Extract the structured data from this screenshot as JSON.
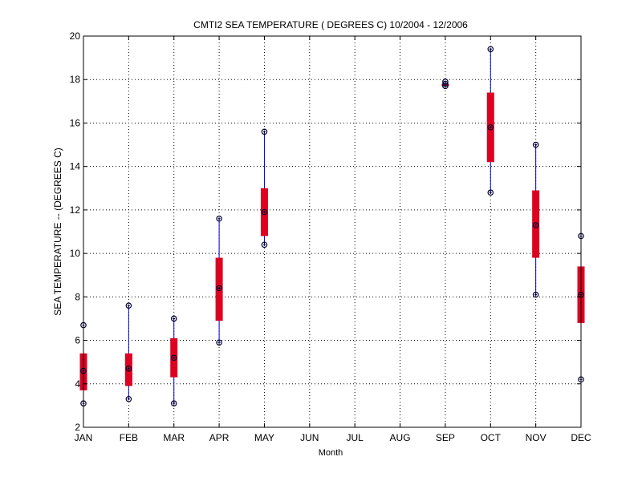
{
  "chart_data": {
    "type": "box",
    "title": "CMTI2  SEA TEMPERATURE ( DEGREES C) 10/2004 - 12/2006",
    "xlabel": "Month",
    "ylabel": "SEA TEMPERATURE -- (DEGREES C)",
    "ylim": [
      2,
      20
    ],
    "yticks": [
      2,
      4,
      6,
      8,
      10,
      12,
      14,
      16,
      18,
      20
    ],
    "grid": true,
    "categories": [
      "JAN",
      "FEB",
      "MAR",
      "APR",
      "MAY",
      "JUN",
      "JUL",
      "AUG",
      "SEP",
      "OCT",
      "NOV",
      "DEC"
    ],
    "series": [
      {
        "values": [
          {
            "min": 3.1,
            "q1": 3.7,
            "median": 4.6,
            "q3": 5.4,
            "max": 6.7
          },
          {
            "min": 3.3,
            "q1": 3.9,
            "median": 4.7,
            "q3": 5.4,
            "max": 7.6
          },
          {
            "min": 3.1,
            "q1": 4.3,
            "median": 5.2,
            "q3": 6.1,
            "max": 7.0
          },
          {
            "min": 5.9,
            "q1": 6.9,
            "median": 8.4,
            "q3": 9.8,
            "max": 11.6
          },
          {
            "min": 10.4,
            "q1": 10.8,
            "median": 11.9,
            "q3": 13.0,
            "max": 15.6
          },
          null,
          null,
          null,
          {
            "min": 17.7,
            "q1": 17.7,
            "median": 17.8,
            "q3": 17.8,
            "max": 17.9
          },
          {
            "min": 12.8,
            "q1": 14.2,
            "median": 15.8,
            "q3": 17.4,
            "max": 19.4
          },
          {
            "min": 8.1,
            "q1": 9.8,
            "median": 11.3,
            "q3": 12.9,
            "max": 15.0
          },
          {
            "min": 4.2,
            "q1": 6.8,
            "median": 8.1,
            "q3": 9.4,
            "max": 10.8
          }
        ]
      }
    ],
    "colors": {
      "box": "#dd0020",
      "whisker": "#0000cc",
      "marker": "#000033",
      "axis": "#000000",
      "grid": "#000000"
    }
  }
}
